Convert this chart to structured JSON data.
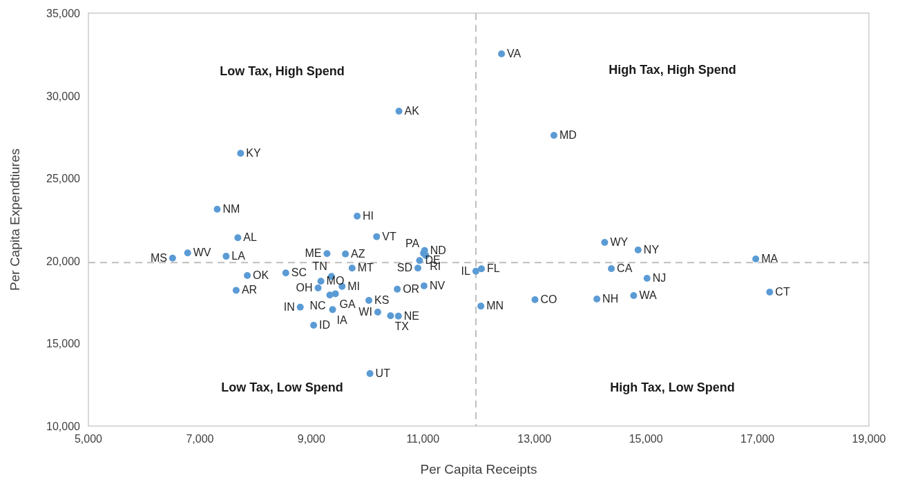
{
  "chart_data": {
    "type": "scatter",
    "xlabel": "Per Capita Receipts",
    "ylabel": "Per Capita Expendtiures",
    "xlim": [
      5000,
      19000
    ],
    "xticks": [
      {
        "value": 5000,
        "label": "5,000"
      },
      {
        "value": 7000,
        "label": "7,000"
      },
      {
        "value": 9000,
        "label": "9,000"
      },
      {
        "value": 11000,
        "label": "11,000"
      },
      {
        "value": 13000,
        "label": "13,000"
      },
      {
        "value": 15000,
        "label": "15,000"
      },
      {
        "value": 17000,
        "label": "17,000"
      },
      {
        "value": 19000,
        "label": "19,000"
      }
    ],
    "ylim": [
      10000,
      35000
    ],
    "yticks": [
      {
        "value": 10000,
        "label": "10,000"
      },
      {
        "value": 15000,
        "label": "15,000"
      },
      {
        "value": 20000,
        "label": "20,000"
      },
      {
        "value": 25000,
        "label": "25,000"
      },
      {
        "value": 30000,
        "label": "30,000"
      },
      {
        "value": 35000,
        "label": "35,000"
      }
    ],
    "grid": false,
    "marker": "circle",
    "ref_lines": [
      {
        "axis": "x",
        "value": 11950,
        "color": "#bfbfbf",
        "line_style": "dashed"
      },
      {
        "axis": "y",
        "value": 19900,
        "color": "#bfbfbf",
        "line_style": "dashed"
      }
    ],
    "annotations": [
      "Low Tax, High Spend",
      "High Tax, High Spend",
      "Low Tax, Low Spend",
      "High Tax, Low Spend"
    ],
    "series": [
      {
        "name": "VA",
        "color": "#5b9bd5",
        "x": [
          12410
        ],
        "values": [
          32530
        ]
      },
      {
        "name": "AK",
        "color": "#5b9bd5",
        "x": [
          10570
        ],
        "values": [
          29060
        ]
      },
      {
        "name": "MD",
        "color": "#5b9bd5",
        "x": [
          13350
        ],
        "values": [
          27600
        ]
      },
      {
        "name": "KY",
        "color": "#5b9bd5",
        "x": [
          7730
        ],
        "values": [
          26510
        ]
      },
      {
        "name": "NM",
        "color": "#5b9bd5",
        "x": [
          7310
        ],
        "values": [
          23130
        ]
      },
      {
        "name": "HI",
        "color": "#5b9bd5",
        "x": [
          9820
        ],
        "values": [
          22710
        ]
      },
      {
        "name": "VT",
        "color": "#5b9bd5",
        "x": [
          10170
        ],
        "values": [
          21470
        ]
      },
      {
        "name": "AL",
        "color": "#5b9bd5",
        "x": [
          7680
        ],
        "values": [
          21400
        ]
      },
      {
        "name": "WY",
        "color": "#5b9bd5",
        "x": [
          14260
        ],
        "values": [
          21120
        ]
      },
      {
        "name": "NY",
        "color": "#5b9bd5",
        "x": [
          14860
        ],
        "values": [
          20660
        ]
      },
      {
        "name": "ND",
        "color": "#5b9bd5",
        "x": [
          11030
        ],
        "values": [
          20630
        ]
      },
      {
        "name": "WV",
        "color": "#5b9bd5",
        "x": [
          6780
        ],
        "values": [
          20480
        ]
      },
      {
        "name": "PA",
        "color": "#5b9bd5",
        "x": [
          11010
        ],
        "values": [
          20460
        ]
      },
      {
        "name": "ME",
        "color": "#5b9bd5",
        "x": [
          9280
        ],
        "values": [
          20440
        ]
      },
      {
        "name": "AZ",
        "color": "#5b9bd5",
        "x": [
          9610
        ],
        "values": [
          20420
        ]
      },
      {
        "name": "RI",
        "color": "#5b9bd5",
        "x": [
          11050
        ],
        "values": [
          20330
        ]
      },
      {
        "name": "LA",
        "color": "#5b9bd5",
        "x": [
          7470
        ],
        "values": [
          20280
        ]
      },
      {
        "name": "MS",
        "color": "#5b9bd5",
        "x": [
          6510
        ],
        "values": [
          20170
        ]
      },
      {
        "name": "MA",
        "color": "#5b9bd5",
        "x": [
          16970
        ],
        "values": [
          20120
        ]
      },
      {
        "name": "DE",
        "color": "#5b9bd5",
        "x": [
          10940
        ],
        "values": [
          20020
        ]
      },
      {
        "name": "MT",
        "color": "#5b9bd5",
        "x": [
          9730
        ],
        "values": [
          19560
        ]
      },
      {
        "name": "SD",
        "color": "#5b9bd5",
        "x": [
          10910
        ],
        "values": [
          19560
        ]
      },
      {
        "name": "CA",
        "color": "#5b9bd5",
        "x": [
          14380
        ],
        "values": [
          19530
        ]
      },
      {
        "name": "FL",
        "color": "#5b9bd5",
        "x": [
          12050
        ],
        "values": [
          19520
        ]
      },
      {
        "name": "IL",
        "color": "#5b9bd5",
        "x": [
          11950
        ],
        "values": [
          19380
        ]
      },
      {
        "name": "SC",
        "color": "#5b9bd5",
        "x": [
          8540
        ],
        "values": [
          19270
        ]
      },
      {
        "name": "OK",
        "color": "#5b9bd5",
        "x": [
          7850
        ],
        "values": [
          19110
        ]
      },
      {
        "name": "TN",
        "color": "#5b9bd5",
        "x": [
          9360
        ],
        "values": [
          19060
        ]
      },
      {
        "name": "NJ",
        "color": "#5b9bd5",
        "x": [
          15020
        ],
        "values": [
          18950
        ]
      },
      {
        "name": "MO",
        "color": "#5b9bd5",
        "x": [
          9170
        ],
        "values": [
          18770
        ]
      },
      {
        "name": "NV",
        "color": "#5b9bd5",
        "x": [
          11020
        ],
        "values": [
          18490
        ]
      },
      {
        "name": "MI",
        "color": "#5b9bd5",
        "x": [
          9550
        ],
        "values": [
          18460
        ]
      },
      {
        "name": "OH",
        "color": "#5b9bd5",
        "x": [
          9120
        ],
        "values": [
          18360
        ]
      },
      {
        "name": "OR",
        "color": "#5b9bd5",
        "x": [
          10540
        ],
        "values": [
          18290
        ]
      },
      {
        "name": "AR",
        "color": "#5b9bd5",
        "x": [
          7650
        ],
        "values": [
          18220
        ]
      },
      {
        "name": "CT",
        "color": "#5b9bd5",
        "x": [
          17220
        ],
        "values": [
          18110
        ]
      },
      {
        "name": "GA",
        "color": "#5b9bd5",
        "x": [
          9430
        ],
        "values": [
          18010
        ]
      },
      {
        "name": "NC",
        "color": "#5b9bd5",
        "x": [
          9330
        ],
        "values": [
          17930
        ]
      },
      {
        "name": "WA",
        "color": "#5b9bd5",
        "x": [
          14780
        ],
        "values": [
          17900
        ]
      },
      {
        "name": "NH",
        "color": "#5b9bd5",
        "x": [
          14120
        ],
        "values": [
          17690
        ]
      },
      {
        "name": "CO",
        "color": "#5b9bd5",
        "x": [
          13010
        ],
        "values": [
          17650
        ]
      },
      {
        "name": "KS",
        "color": "#5b9bd5",
        "x": [
          10030
        ],
        "values": [
          17610
        ]
      },
      {
        "name": "MN",
        "color": "#5b9bd5",
        "x": [
          12040
        ],
        "values": [
          17260
        ]
      },
      {
        "name": "IN",
        "color": "#5b9bd5",
        "x": [
          8800
        ],
        "values": [
          17200
        ]
      },
      {
        "name": "IA",
        "color": "#5b9bd5",
        "x": [
          9380
        ],
        "values": [
          17050
        ]
      },
      {
        "name": "WI",
        "color": "#5b9bd5",
        "x": [
          10190
        ],
        "values": [
          16900
        ]
      },
      {
        "name": "TX",
        "color": "#5b9bd5",
        "x": [
          10420
        ],
        "values": [
          16680
        ]
      },
      {
        "name": "NE",
        "color": "#5b9bd5",
        "x": [
          10560
        ],
        "values": [
          16660
        ]
      },
      {
        "name": "ID",
        "color": "#5b9bd5",
        "x": [
          9040
        ],
        "values": [
          16100
        ]
      },
      {
        "name": "UT",
        "color": "#5b9bd5",
        "x": [
          10050
        ],
        "values": [
          13180
        ]
      }
    ]
  }
}
